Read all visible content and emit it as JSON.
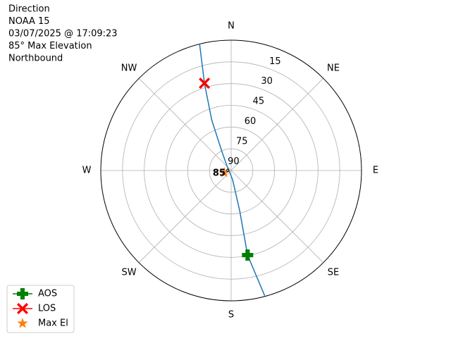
{
  "chart_data": {
    "type": "polar",
    "title_lines": [
      "Direction",
      "NOAA 15",
      "03/07/2025 @ 17:09:23",
      "85° Max Elevation",
      "Northbound"
    ],
    "rlim": [
      90,
      0
    ],
    "rticks": [
      15,
      30,
      45,
      60,
      75,
      90
    ],
    "theta_ticks": [
      {
        "value": 0,
        "label": "N"
      },
      {
        "value": 45,
        "label": "NE"
      },
      {
        "value": 90,
        "label": "E"
      },
      {
        "value": 135,
        "label": "SE"
      },
      {
        "value": 180,
        "label": "S"
      },
      {
        "value": 225,
        "label": "SW"
      },
      {
        "value": 270,
        "label": "W"
      },
      {
        "value": 315,
        "label": "NW"
      }
    ],
    "grid": true,
    "legend": "lower left",
    "series": [
      {
        "color": "#1f77b4",
        "marker": "line",
        "theta": [
          346,
          343,
          339,
          334,
          319,
          171,
          168,
          169,
          165
        ],
        "r": [
          0,
          27,
          52.5,
          75.4,
          85.5,
          83.6,
          61.3,
          30.5,
          0.5
        ]
      },
      {
        "name": "AOS",
        "color": "#008000",
        "marker": "plus",
        "theta": [
          169
        ],
        "r": [
          30.5
        ]
      },
      {
        "name": "LOS",
        "color": "#ff0000",
        "marker": "x",
        "theta": [
          343
        ],
        "r": [
          27
        ]
      },
      {
        "name": "Max El",
        "color": "#ff7f0e",
        "marker": "star",
        "theta": [
          252
        ],
        "r": [
          85
        ]
      }
    ],
    "annotation": {
      "text": "85°",
      "theta": 252,
      "r": 85
    }
  }
}
